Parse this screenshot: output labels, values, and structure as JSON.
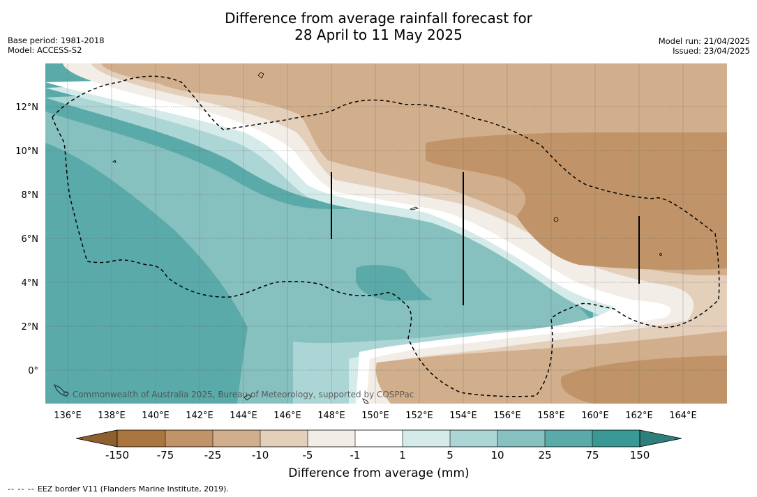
{
  "header": {
    "title_line1": "Difference from average rainfall forecast for",
    "title_line2": "28 April to 11 May 2025",
    "base_period": "Base period: 1981-2018",
    "model": "Model: ACCESS-S2",
    "model_run": "Model run: 21/04/2025",
    "issued": "Issued: 23/04/2025"
  },
  "map": {
    "lat_labels": [
      "12°N",
      "10°N",
      "8°N",
      "6°N",
      "4°N",
      "2°N",
      "0°"
    ],
    "lon_labels": [
      "136°E",
      "138°E",
      "140°E",
      "142°E",
      "144°E",
      "146°E",
      "148°E",
      "150°E",
      "152°E",
      "154°E",
      "156°E",
      "158°E",
      "160°E",
      "162°E",
      "164°E"
    ],
    "copyright": "© Commonwealth of Australia 2025, Bureau of Meteorology, supported by COSPPac",
    "colors": {
      "d150": "#a97640",
      "d75": "#c09468",
      "d25": "#d2af8c",
      "d10": "#e4cfbb",
      "d5": "#f2ede6",
      "neutral": "#ffffff",
      "w1": "#d5ebea",
      "w5": "#acd6d5",
      "w10": "#86c0bf",
      "w25": "#5aaaa9",
      "w75": "#3a9995",
      "w150": "#2e7f7c"
    }
  },
  "legend": {
    "title": "Difference from average (mm)",
    "ticks": [
      "-150",
      "-75",
      "-25",
      "-10",
      "-5",
      "-1",
      "1",
      "5",
      "10",
      "25",
      "75",
      "150"
    ],
    "eez_note": "EEZ border V11 (Flanders Marine Institute, 2019).",
    "eez_dash": "--  --  --"
  }
}
